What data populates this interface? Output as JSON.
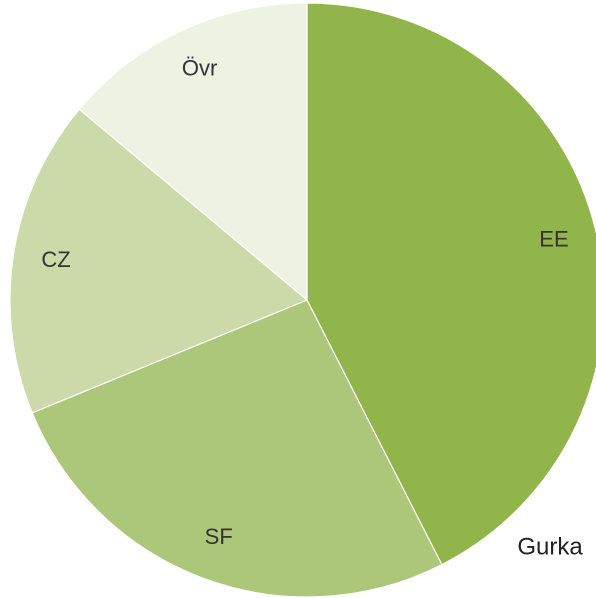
{
  "chart_data": {
    "type": "pie",
    "title": "Gurka",
    "categories": [
      "EE",
      "SF",
      "CZ",
      "Övr"
    ],
    "values": [
      42.5,
      26.3,
      17.3,
      13.9
    ],
    "colors": [
      "#92b54b",
      "#adc77a",
      "#cbdaa8",
      "#eef2e3"
    ]
  }
}
